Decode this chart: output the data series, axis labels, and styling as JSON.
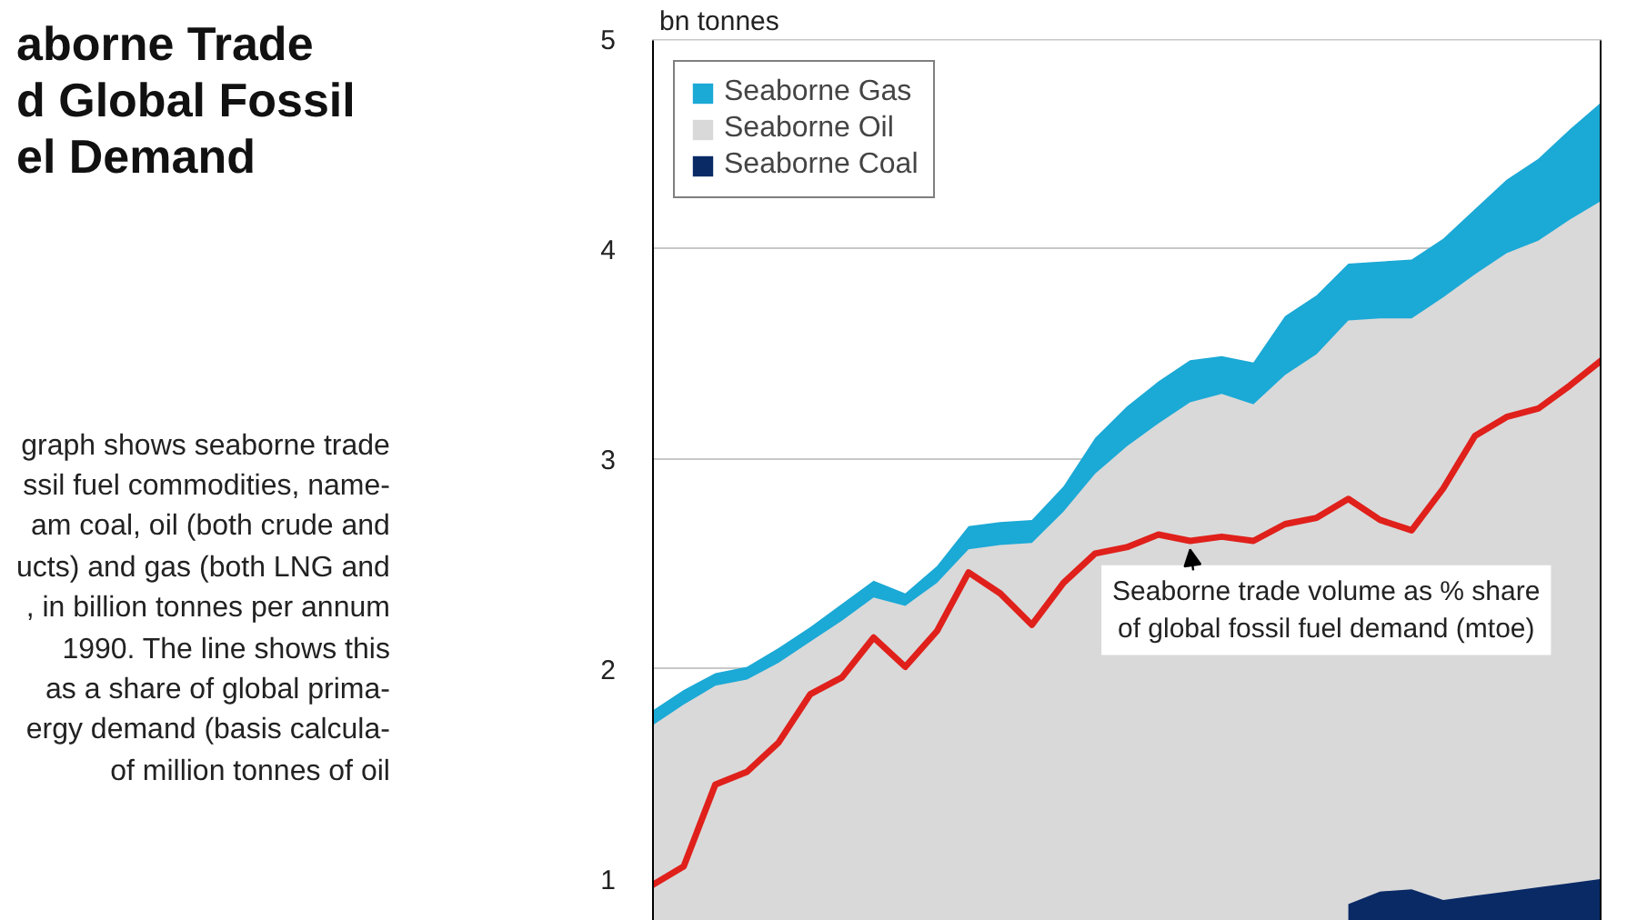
{
  "chart_data": {
    "type": "area",
    "title": "aborne Trade\nd Global Fossil\nel Demand",
    "annotations": [
      "graph shows seaborne trade\nssil fuel commodities, name-\nam coal, oil (both crude and\nucts) and gas (both LNG and\n, in billion tonnes per annum\n1990. The line shows this\nas a share of global prima-\nergy demand (basis calcula-\nof million tonnes of oil"
    ],
    "ylabel": "bn tonnes",
    "categories": [
      null,
      null,
      null,
      null,
      null,
      null,
      null,
      null,
      null,
      null,
      null,
      null,
      null,
      null,
      null,
      null,
      null,
      null,
      null,
      null,
      null,
      null,
      null,
      null,
      null,
      null,
      null,
      null,
      null,
      null,
      null
    ],
    "series": [
      {
        "name": "Seaborne Gas",
        "color": "#1ba9d6",
        "values": [
          1.8,
          1.9,
          1.98,
          2.01,
          2.1,
          2.2,
          2.31,
          2.42,
          2.36,
          2.49,
          2.68,
          2.7,
          2.71,
          2.87,
          3.1,
          3.25,
          3.37,
          3.47,
          3.49,
          3.46,
          3.68,
          3.78,
          3.93,
          3.94,
          3.95,
          4.05,
          4.19,
          4.33,
          4.43,
          4.57,
          4.7
        ]
      },
      {
        "name": "Seaborne Oil",
        "color": "#d9d9d9",
        "values": [
          1.73,
          1.83,
          1.92,
          1.95,
          2.03,
          2.13,
          2.23,
          2.34,
          2.3,
          2.41,
          2.57,
          2.59,
          2.6,
          2.75,
          2.93,
          3.06,
          3.17,
          3.27,
          3.31,
          3.26,
          3.4,
          3.5,
          3.66,
          3.67,
          3.67,
          3.77,
          3.88,
          3.98,
          4.04,
          4.14,
          4.23
        ]
      },
      {
        "name": "Seaborne Coal",
        "color": "#0a2a66",
        "values": [
          null,
          null,
          null,
          null,
          null,
          null,
          null,
          null,
          null,
          null,
          null,
          null,
          null,
          null,
          null,
          null,
          null,
          null,
          null,
          null,
          null,
          null,
          0.88,
          0.94,
          0.95,
          0.9,
          0.92,
          0.94,
          0.96,
          0.98,
          1.0
        ]
      },
      {
        "name": "Seaborne trade volume as % share\nof global fossil fuel demand (mtoe)",
        "type": "line",
        "color": "#e0201b",
        "values": [
          0.97,
          1.06,
          1.45,
          1.51,
          1.65,
          1.88,
          1.96,
          2.15,
          2.01,
          2.18,
          2.46,
          2.36,
          2.21,
          2.41,
          2.55,
          2.58,
          2.64,
          2.61,
          2.63,
          2.61,
          2.69,
          2.72,
          2.81,
          2.71,
          2.66,
          2.86,
          3.11,
          3.2,
          3.24,
          3.35,
          3.47
        ]
      }
    ],
    "ylim": [
      0.8,
      5
    ],
    "yticks": [
      1,
      2,
      3,
      4,
      5
    ],
    "grid": "y",
    "legend": "top left",
    "tick_labels": "y"
  }
}
